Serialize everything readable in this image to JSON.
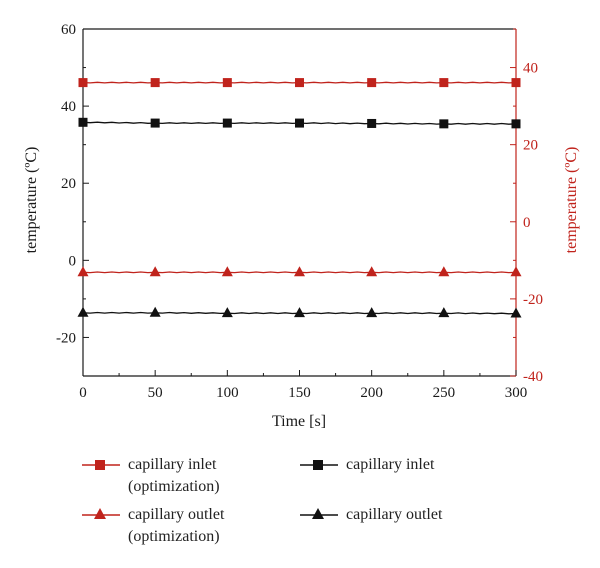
{
  "chart_data": {
    "type": "line",
    "xlabel": "Time [s]",
    "ylabel_left": "temperature (ºC)",
    "ylabel_right": "temperature (ºC)",
    "x_ticks": [
      "0",
      "50",
      "100",
      "150",
      "200",
      "250",
      "300"
    ],
    "y_left_ticks": [
      "60",
      "40",
      "20",
      "0",
      "-20"
    ],
    "y_right_ticks": [
      "40",
      "20",
      "0",
      "-20",
      "-40"
    ],
    "xlim": [
      0,
      300
    ],
    "ylim_left": [
      -30,
      60
    ],
    "ylim_right": [
      -40,
      50
    ],
    "x": [
      0,
      50,
      100,
      150,
      200,
      250,
      300
    ],
    "series": [
      {
        "name": "capillary inlet (optimization)",
        "axis": "right",
        "marker": "square",
        "color": "#c0231c",
        "values": [
          36.1,
          36.1,
          36.1,
          36.1,
          36.1,
          36.1,
          36.1
        ]
      },
      {
        "name": "capillary outlet (optimization)",
        "axis": "right",
        "marker": "triangle",
        "color": "#c0231c",
        "values": [
          -13.1,
          -13.1,
          -13.1,
          -13.1,
          -13.1,
          -13.1,
          -13.1
        ]
      },
      {
        "name": "capillary inlet",
        "axis": "left",
        "marker": "square",
        "color": "#111111",
        "values": [
          35.8,
          35.6,
          35.6,
          35.6,
          35.5,
          35.4,
          35.4
        ]
      },
      {
        "name": "capillary outlet",
        "axis": "left",
        "marker": "triangle",
        "color": "#111111",
        "values": [
          -13.6,
          -13.6,
          -13.7,
          -13.7,
          -13.7,
          -13.7,
          -13.8
        ]
      }
    ],
    "grid": false,
    "legend_position": "bottom"
  },
  "legend": [
    {
      "label": "capillary inlet\n(optimization)",
      "color": "#c0231c",
      "marker": "square"
    },
    {
      "label": "capillary inlet",
      "color": "#111111",
      "marker": "square"
    },
    {
      "label": "capillary outlet\n(optimization)",
      "color": "#c0231c",
      "marker": "triangle"
    },
    {
      "label": "capillary outlet",
      "color": "#111111",
      "marker": "triangle"
    }
  ],
  "colors": {
    "left_axis": "#1a1a1a",
    "right_axis": "#c0231c"
  }
}
